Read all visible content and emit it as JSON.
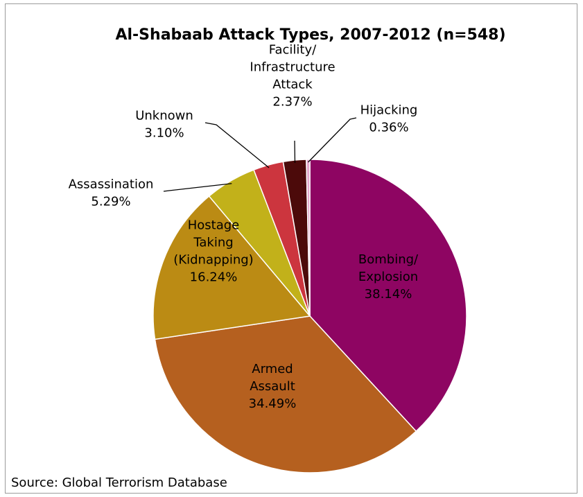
{
  "chart_data": {
    "type": "pie",
    "title": "Al-Shabaab Attack Types, 2007-2012 (n=548)",
    "source": "Source: Global Terrorism Database",
    "slices": [
      {
        "label": [
          "Bombing/",
          "Explosion"
        ],
        "value": 38.14,
        "value_text": "38.14%",
        "color": "#8e0562"
      },
      {
        "label": [
          "Armed",
          "Assault"
        ],
        "value": 34.49,
        "value_text": "34.49%",
        "color": "#b5601f"
      },
      {
        "label": [
          "Hostage",
          "Taking",
          "(Kidnapping)"
        ],
        "value": 16.24,
        "value_text": "16.24%",
        "color": "#bb8b14"
      },
      {
        "label": [
          "Assassination"
        ],
        "value": 5.29,
        "value_text": "5.29%",
        "color": "#c2b11a"
      },
      {
        "label": [
          "Unknown"
        ],
        "value": 3.1,
        "value_text": "3.10%",
        "color": "#cc353e"
      },
      {
        "label": [
          "Facility/",
          "Infrastructure",
          "Attack"
        ],
        "value": 2.37,
        "value_text": "2.37%",
        "color": "#4c0a0a"
      },
      {
        "label": [
          "Hijacking"
        ],
        "value": 0.36,
        "value_text": "0.36%",
        "color": "#e3a8cc"
      }
    ]
  }
}
